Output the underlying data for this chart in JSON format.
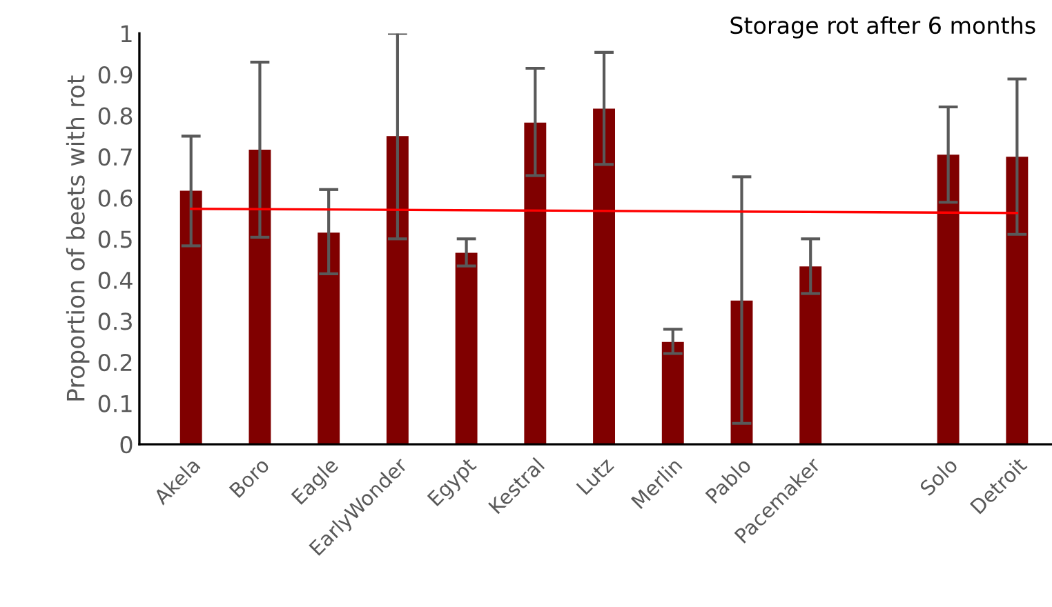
{
  "chart_data": {
    "type": "bar",
    "title": "Storage rot after 6 months",
    "ylabel": "Proportion of beets with rot",
    "categories": [
      "Akela",
      "Boro",
      "Eagle",
      "EarlyWonder",
      "Egypt",
      "Kestral",
      "Lutz",
      "Merlin",
      "Pablo",
      "Pacemaker",
      null,
      "Solo",
      "Detroit"
    ],
    "series": [
      {
        "color": "#800000",
        "values": [
          0.617,
          0.717,
          0.515,
          0.75,
          0.466,
          0.783,
          0.817,
          0.249,
          0.35,
          0.433,
          null,
          0.705,
          0.7
        ],
        "errors": [
          [
            0.483,
            0.75
          ],
          [
            0.504,
            0.93
          ],
          [
            0.415,
            0.62
          ],
          [
            0.5,
            1.0
          ],
          [
            0.434,
            0.5
          ],
          [
            0.654,
            0.915
          ],
          [
            0.681,
            0.954
          ],
          [
            0.221,
            0.28
          ],
          [
            0.051,
            0.651
          ],
          [
            0.367,
            0.5
          ],
          null,
          [
            0.589,
            0.821
          ],
          [
            0.511,
            0.889
          ]
        ]
      },
      {
        "type": "line",
        "color": "#ff0000",
        "x": [
          "Akela",
          "Detroit"
        ],
        "values": [
          0.573,
          0.563
        ]
      }
    ],
    "ylim": [
      0,
      1
    ],
    "yticks": [
      0,
      0.1,
      0.2,
      0.3,
      0.4,
      0.5,
      0.6,
      0.7,
      0.8,
      0.9,
      1
    ],
    "grid": false,
    "legend": false
  }
}
